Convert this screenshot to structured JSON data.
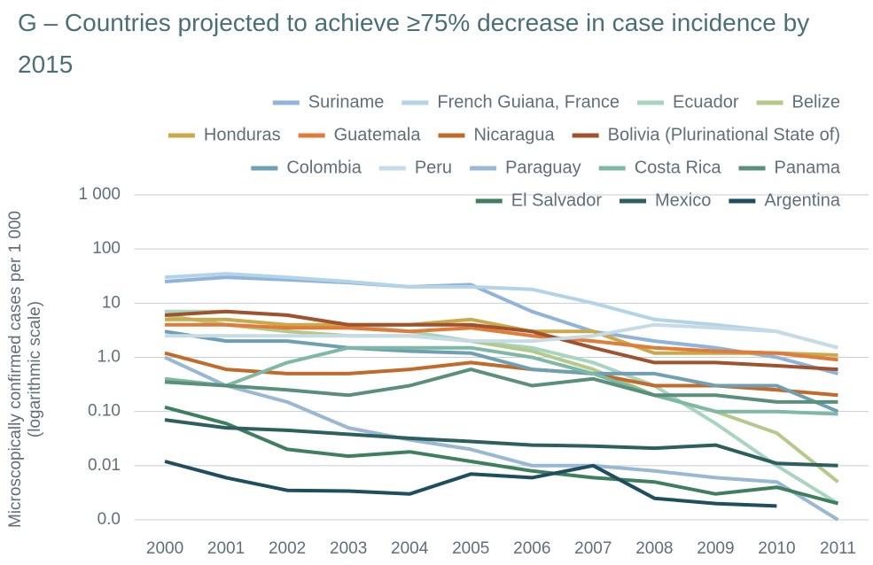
{
  "chart_data": {
    "type": "line",
    "title": "G – Countries projected to achieve ≥75% decrease in case incidence by 2015",
    "ylabel": [
      "Microscopically confirmed cases per 1 000",
      "(logarithmic scale)"
    ],
    "categories": [
      "2000",
      "2001",
      "2002",
      "2003",
      "2004",
      "2005",
      "2006",
      "2007",
      "2008",
      "2009",
      "2010",
      "2011"
    ],
    "log_scale": true,
    "grid": true,
    "legend": "top",
    "ylim": [
      0.001,
      1000
    ],
    "yticks": [
      {
        "value": 1000,
        "label": "1 000"
      },
      100,
      10,
      {
        "value": 1,
        "label": "1.0"
      },
      {
        "value": 0.1,
        "label": "0.10"
      },
      0.01,
      {
        "value": 0.001,
        "label": "0.0"
      }
    ],
    "series": [
      {
        "name": "Suriname",
        "color": "#8fb3d9",
        "values": [
          25,
          30,
          27,
          24,
          20,
          22,
          7,
          3,
          2,
          1.5,
          1,
          0.5
        ]
      },
      {
        "name": "French Guiana, France",
        "color": "#b3d3e8",
        "values": [
          30,
          35,
          30,
          25,
          20,
          20,
          18,
          10,
          5,
          4,
          3,
          1.5
        ]
      },
      {
        "name": "Ecuador",
        "color": "#a8d5c0",
        "values": [
          7,
          7,
          6,
          4,
          3,
          2,
          1.5,
          0.8,
          0.3,
          0.06,
          0.01,
          0.002
        ]
      },
      {
        "name": "Belize",
        "color": "#b5c98a",
        "values": [
          6,
          4,
          3,
          2.5,
          2.5,
          2,
          1.3,
          0.6,
          0.2,
          0.1,
          0.04,
          0.005
        ]
      },
      {
        "name": "Honduras",
        "color": "#c9a94a",
        "values": [
          5,
          5,
          4,
          4,
          4,
          5,
          3,
          3,
          1.2,
          1.2,
          1.2,
          1.1
        ]
      },
      {
        "name": "Guatemala",
        "color": "#e07b39",
        "values": [
          4,
          4,
          3.5,
          3.5,
          3,
          3.5,
          2.5,
          2,
          1.5,
          1.3,
          1.2,
          0.9
        ]
      },
      {
        "name": "Nicaragua",
        "color": "#c26a2a",
        "values": [
          1.2,
          0.6,
          0.5,
          0.5,
          0.6,
          0.8,
          0.6,
          0.5,
          0.3,
          0.3,
          0.25,
          0.2
        ]
      },
      {
        "name": "Bolivia (Plurinational State of)",
        "color": "#a0522d",
        "values": [
          6,
          7,
          6,
          4,
          4,
          4,
          3,
          1.5,
          0.8,
          0.8,
          0.7,
          0.6
        ]
      },
      {
        "name": "Colombia",
        "color": "#6f9fb3",
        "values": [
          3,
          2,
          2,
          1.5,
          1.3,
          1.2,
          0.6,
          0.5,
          0.5,
          0.3,
          0.3,
          0.1
        ]
      },
      {
        "name": "Peru",
        "color": "#c7dbe6",
        "values": [
          2.5,
          2.5,
          2.5,
          2.5,
          2.5,
          2,
          2,
          2.5,
          4,
          3.5,
          3,
          1.5
        ]
      },
      {
        "name": "Paraguay",
        "color": "#9ab7d3",
        "values": [
          1,
          0.3,
          0.15,
          0.05,
          0.03,
          0.02,
          0.01,
          0.01,
          0.008,
          0.006,
          0.005,
          0.001
        ]
      },
      {
        "name": "Costa Rica",
        "color": "#7fb8a4",
        "values": [
          0.4,
          0.3,
          0.8,
          1.5,
          1.5,
          1.5,
          1,
          0.5,
          0.2,
          0.1,
          0.1,
          0.09
        ]
      },
      {
        "name": "Panama",
        "color": "#5a8f7a",
        "values": [
          0.35,
          0.3,
          0.25,
          0.2,
          0.3,
          0.6,
          0.3,
          0.4,
          0.2,
          0.2,
          0.15,
          0.15
        ]
      },
      {
        "name": "El Salvador",
        "color": "#3f7f5f",
        "values": [
          0.12,
          0.06,
          0.02,
          0.015,
          0.018,
          0.012,
          0.008,
          0.006,
          0.005,
          0.003,
          0.004,
          0.002
        ]
      },
      {
        "name": "Mexico",
        "color": "#2d5f5f",
        "values": [
          0.07,
          0.05,
          0.045,
          0.038,
          0.032,
          0.028,
          0.024,
          0.023,
          0.021,
          0.024,
          0.011,
          0.01
        ]
      },
      {
        "name": "Argentina",
        "color": "#1f4e5f",
        "values": [
          0.012,
          0.006,
          0.0035,
          0.0034,
          0.003,
          0.007,
          0.006,
          0.01,
          0.0025,
          0.002,
          0.0018,
          null
        ]
      }
    ]
  }
}
